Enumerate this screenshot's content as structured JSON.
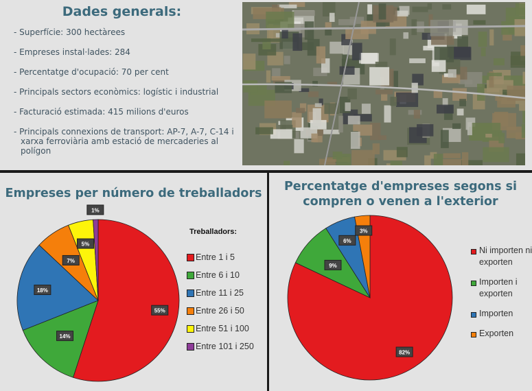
{
  "general": {
    "title": "Dades generals:",
    "facts": [
      "Superfície: 300 hectàrees",
      "Empreses instal·lades: 284",
      "Percentatge d'ocupació: 70 per cent",
      "Principals sectors econòmics: logístic i industrial",
      "Facturació estimada: 415 milions d'euros",
      "Principals connexions de transport: AP-7, A-7, C-14 i xarxa ferroviària amb estació de mercaderies al polígon"
    ]
  },
  "chart_data": [
    {
      "type": "pie",
      "title": "Empreses per número de treballadors",
      "legend_title": "Treballadors:",
      "legend_position": "right",
      "categories": [
        "Entre 1 i 5",
        "Entre 6 i 10",
        "Entre 11 i 25",
        "Entre 26 i 50",
        "Entre 51 i 100",
        "Entre 101 i 250"
      ],
      "values": [
        55,
        14,
        18,
        7,
        5,
        1
      ],
      "labels": [
        "55%",
        "14%",
        "18%",
        "7%",
        "5%",
        "1%"
      ],
      "colors": [
        "#e31b1f",
        "#3fa83a",
        "#2f75b5",
        "#f57f0b",
        "#fdf40a",
        "#8e3c98"
      ]
    },
    {
      "type": "pie",
      "title": "Percentatge d'empreses segons si compren o venen a l'exterior",
      "legend_position": "right",
      "categories": [
        "Ni importen ni exporten",
        "Importen i exporten",
        "Importen",
        "Exporten"
      ],
      "values": [
        82,
        9,
        6,
        3
      ],
      "labels": [
        "82%",
        "9%",
        "6%",
        "3%"
      ],
      "colors": [
        "#e31b1f",
        "#3fa83a",
        "#2f75b5",
        "#f57f0b"
      ]
    }
  ]
}
